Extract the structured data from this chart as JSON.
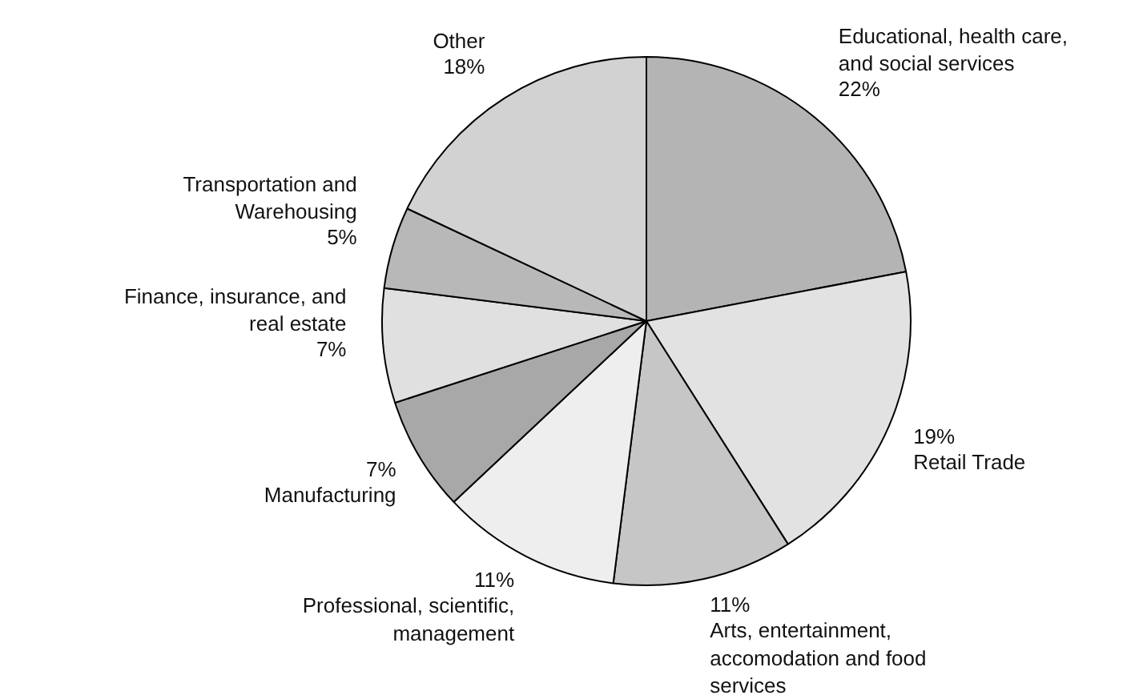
{
  "chart_data": {
    "type": "pie",
    "categories": [
      "Educational, health care, and social services",
      "Retail Trade",
      "Arts, entertainment, accomodation and food services",
      "Professional, scientific, management",
      "Manufacturing",
      "Finance, insurance, and real estate",
      "Transportation and Warehousing",
      "Other"
    ],
    "values": [
      22,
      19,
      11,
      11,
      7,
      7,
      5,
      18
    ],
    "value_labels": [
      "22%",
      "19%",
      "11%",
      "11%",
      "7%",
      "7%",
      "5%",
      "18%"
    ],
    "colors": [
      "#b4b4b4",
      "#e2e2e2",
      "#c6c6c6",
      "#eeeeee",
      "#a8a8a8",
      "#e0e0e0",
      "#b8b8b8",
      "#d2d2d2"
    ]
  }
}
